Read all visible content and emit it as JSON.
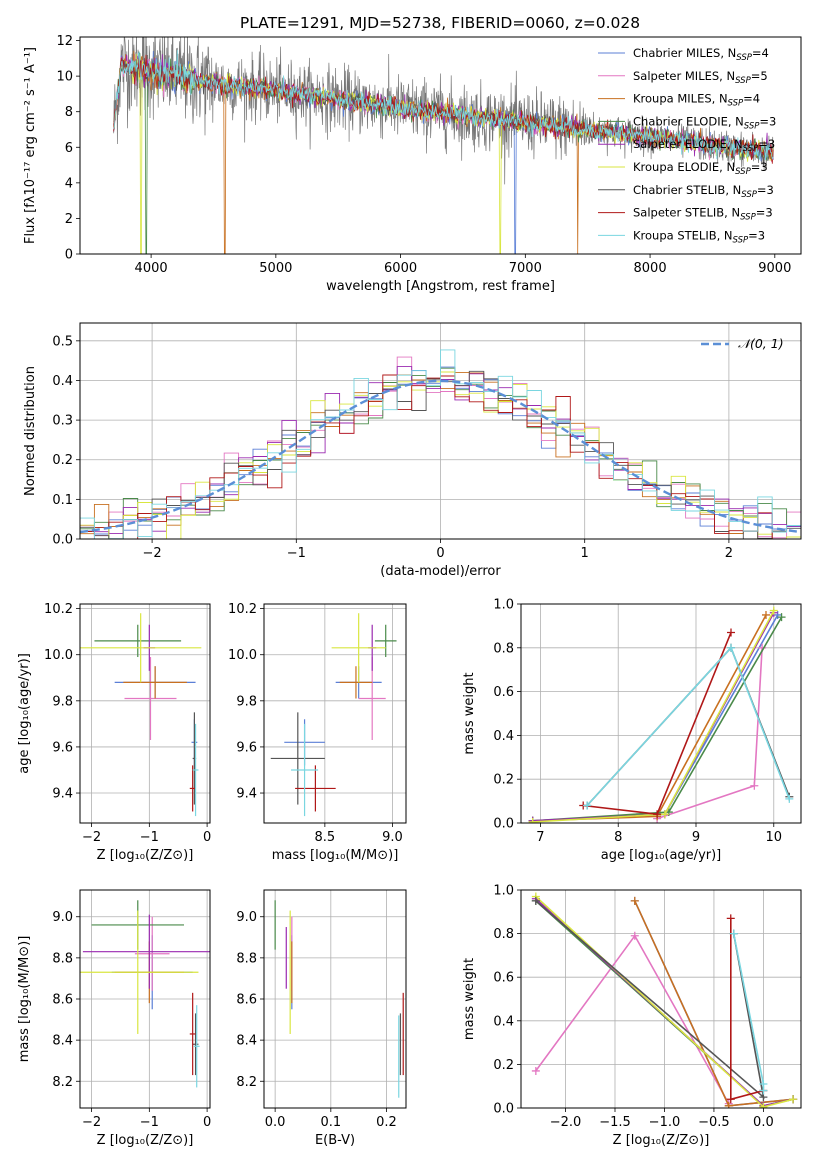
{
  "figure_title": "PLATE=1291, MJD=52738, FIBERID=0060, z=0.028",
  "colors": {
    "Chabrier MILES": "#5b7fd6",
    "Salpeter MILES": "#e377c2",
    "Kroupa MILES": "#c87020",
    "Chabrier ELODIE": "#4a8a4a",
    "Salpeter ELODIE": "#9a2ab0",
    "Kroupa ELODIE": "#d9e640",
    "Chabrier STELIB": "#555555",
    "Salpeter STELIB": "#b01818",
    "Kroupa STELIB": "#7ad6e0",
    "gauss": "#5b8fd6"
  },
  "chart_data": [
    {
      "id": "spectrum",
      "type": "line",
      "xlabel": "wavelength [Angstrom, rest frame]",
      "ylabel": "Flux [fλ10⁻¹⁷ erg cm⁻² s⁻¹ A⁻¹]",
      "xlim": [
        3430,
        9210
      ],
      "ylim": [
        0,
        12.2
      ],
      "xticks": [
        4000,
        5000,
        6000,
        7000,
        8000,
        9000
      ],
      "yticks": [
        0,
        2,
        4,
        6,
        8,
        10,
        12
      ],
      "continuum": [
        [
          3700,
          7.2
        ],
        [
          3760,
          10.6
        ],
        [
          4000,
          10.3
        ],
        [
          4500,
          9.6
        ],
        [
          5000,
          9.2
        ],
        [
          5500,
          8.7
        ],
        [
          6000,
          8.2
        ],
        [
          6500,
          7.8
        ],
        [
          7000,
          7.4
        ],
        [
          7500,
          7.0
        ],
        [
          8000,
          6.6
        ],
        [
          8500,
          6.1
        ],
        [
          8990,
          5.7
        ]
      ],
      "data_noise": 2.2,
      "legend": [
        {
          "label": "Chabrier MILES, N",
          "sub": "SSP",
          "tail": "=4"
        },
        {
          "label": "Salpeter MILES, N",
          "sub": "SSP",
          "tail": "=5"
        },
        {
          "label": "Kroupa MILES, N",
          "sub": "SSP",
          "tail": "=4"
        },
        {
          "label": "Chabrier ELODIE, N",
          "sub": "SSP",
          "tail": "=3"
        },
        {
          "label": "Salpeter ELODIE, N",
          "sub": "SSP",
          "tail": "=3"
        },
        {
          "label": "Kroupa ELODIE, N",
          "sub": "SSP",
          "tail": "=3"
        },
        {
          "label": "Chabrier STELIB, N",
          "sub": "SSP",
          "tail": "=3"
        },
        {
          "label": "Salpeter STELIB, N",
          "sub": "SSP",
          "tail": "=3"
        },
        {
          "label": "Kroupa STELIB, N",
          "sub": "SSP",
          "tail": "=3"
        }
      ],
      "series": [
        "Chabrier MILES",
        "Salpeter MILES",
        "Kroupa MILES",
        "Chabrier ELODIE",
        "Salpeter ELODIE",
        "Kroupa ELODIE",
        "Chabrier STELIB",
        "Salpeter STELIB",
        "Kroupa STELIB"
      ]
    },
    {
      "id": "residuals",
      "type": "histogram",
      "xlabel": "(data-model)/error",
      "ylabel": "Normed distribution",
      "xlim": [
        -2.5,
        2.5
      ],
      "ylim": [
        0,
        0.545
      ],
      "xticks": [
        -2,
        -1,
        0,
        1,
        2
      ],
      "yticks": [
        0.0,
        0.1,
        0.2,
        0.3,
        0.4,
        0.5
      ],
      "grid": true,
      "legend": "𝒩(0, 1)",
      "legend_position": "top-right",
      "bin_width": 0.1
    },
    {
      "id": "age_vs_Z",
      "type": "errorbar",
      "xlabel": "Z [log₁₀(Z/Z⊙)]",
      "ylabel": "age  [log₁₀(age/yr)]",
      "xlim": [
        -2.2,
        0.05
      ],
      "ylim": [
        9.27,
        10.22
      ],
      "xticks": [
        -2,
        -1,
        0
      ],
      "yticks": [
        9.4,
        9.6,
        9.8,
        10.0,
        10.2
      ],
      "grid": true,
      "points": [
        {
          "s": "Chabrier MILES",
          "x": -0.9,
          "xerr": 0.7,
          "y": 9.88,
          "yerr": 0.07
        },
        {
          "s": "Chabrier MILES",
          "x": -0.22,
          "xerr": 0.05,
          "y": 9.62,
          "yerr": 0.1
        },
        {
          "s": "Salpeter MILES",
          "x": -0.98,
          "xerr": 0.45,
          "y": 9.81,
          "yerr": 0.18
        },
        {
          "s": "Kroupa MILES",
          "x": -0.9,
          "xerr": 0.55,
          "y": 9.88,
          "yerr": 0.07
        },
        {
          "s": "Chabrier ELODIE",
          "x": -1.2,
          "xerr": 0.75,
          "y": 10.06,
          "yerr": 0.07
        },
        {
          "s": "Salpeter ELODIE",
          "x": -1.0,
          "xerr": 0.1,
          "y": 10.03,
          "yerr": 0.1
        },
        {
          "s": "Kroupa ELODIE",
          "x": -1.15,
          "xerr": 1.05,
          "y": 10.03,
          "yerr": 0.15
        },
        {
          "s": "Chabrier STELIB",
          "x": -0.22,
          "xerr": 0.03,
          "y": 9.55,
          "yerr": 0.2
        },
        {
          "s": "Salpeter STELIB",
          "x": -0.25,
          "xerr": 0.05,
          "y": 9.42,
          "yerr": 0.1
        },
        {
          "s": "Kroupa STELIB",
          "x": -0.2,
          "xerr": 0.05,
          "y": 9.5,
          "yerr": 0.2
        }
      ]
    },
    {
      "id": "age_vs_mass",
      "type": "errorbar",
      "xlabel": "mass [log₁₀(M/M⊙)]",
      "ylabel": "",
      "xlim": [
        8.05,
        9.1
      ],
      "ylim": [
        9.27,
        10.22
      ],
      "xticks": [
        8.5,
        9.0
      ],
      "yticks": [
        9.4,
        9.6,
        9.8,
        10.0,
        10.2
      ],
      "grid": true,
      "points": [
        {
          "s": "Chabrier MILES",
          "x": 8.75,
          "xerr": 0.17,
          "y": 9.88,
          "yerr": 0.07
        },
        {
          "s": "Chabrier MILES",
          "x": 8.35,
          "xerr": 0.15,
          "y": 9.62,
          "yerr": 0.1
        },
        {
          "s": "Salpeter MILES",
          "x": 8.85,
          "xerr": 0.1,
          "y": 9.81,
          "yerr": 0.18
        },
        {
          "s": "Kroupa MILES",
          "x": 8.73,
          "xerr": 0.12,
          "y": 9.88,
          "yerr": 0.07
        },
        {
          "s": "Chabrier ELODIE",
          "x": 8.95,
          "xerr": 0.08,
          "y": 10.06,
          "yerr": 0.07
        },
        {
          "s": "Salpeter ELODIE",
          "x": 8.85,
          "xerr": 0.03,
          "y": 10.03,
          "yerr": 0.1
        },
        {
          "s": "Kroupa ELODIE",
          "x": 8.75,
          "xerr": 0.2,
          "y": 10.03,
          "yerr": 0.15
        },
        {
          "s": "Chabrier STELIB",
          "x": 8.3,
          "xerr": 0.2,
          "y": 9.55,
          "yerr": 0.2
        },
        {
          "s": "Salpeter STELIB",
          "x": 8.43,
          "xerr": 0.15,
          "y": 9.42,
          "yerr": 0.1
        },
        {
          "s": "Kroupa STELIB",
          "x": 8.35,
          "xerr": 0.1,
          "y": 9.5,
          "yerr": 0.2
        }
      ]
    },
    {
      "id": "weight_vs_age",
      "type": "line",
      "xlabel": "age  [log₁₀(age/yr)]",
      "ylabel": "mass weight",
      "xlim": [
        6.75,
        10.35
      ],
      "ylim": [
        0,
        1.0
      ],
      "xticks": [
        7,
        8,
        9,
        10
      ],
      "yticks": [
        0.0,
        0.2,
        0.4,
        0.6,
        0.8,
        1.0
      ],
      "grid": true,
      "series": [
        {
          "s": "Chabrier MILES",
          "x": [
            6.9,
            8.6,
            10.05
          ],
          "y": [
            0.01,
            0.04,
            0.95
          ]
        },
        {
          "s": "Salpeter MILES",
          "x": [
            8.5,
            9.75,
            9.85
          ],
          "y": [
            0.02,
            0.17,
            0.8
          ]
        },
        {
          "s": "Kroupa MILES",
          "x": [
            6.9,
            8.5,
            9.9
          ],
          "y": [
            0.01,
            0.03,
            0.95
          ]
        },
        {
          "s": "Chabrier ELODIE",
          "x": [
            6.9,
            8.65,
            10.1
          ],
          "y": [
            0.01,
            0.05,
            0.94
          ]
        },
        {
          "s": "Salpeter ELODIE",
          "x": [
            6.9,
            8.6,
            10.0
          ],
          "y": [
            0.01,
            0.04,
            0.96
          ]
        },
        {
          "s": "Kroupa ELODIE",
          "x": [
            6.9,
            8.6,
            10.0
          ],
          "y": [
            0.005,
            0.04,
            0.97
          ]
        },
        {
          "s": "Chabrier STELIB",
          "x": [
            7.6,
            9.45,
            10.2
          ],
          "y": [
            0.08,
            0.8,
            0.12
          ]
        },
        {
          "s": "Salpeter STELIB",
          "x": [
            7.55,
            8.5,
            9.45
          ],
          "y": [
            0.08,
            0.04,
            0.87
          ]
        },
        {
          "s": "Kroupa STELIB",
          "x": [
            7.6,
            9.45,
            10.2
          ],
          "y": [
            0.08,
            0.8,
            0.11
          ]
        }
      ]
    },
    {
      "id": "mass_vs_Z",
      "type": "errorbar",
      "xlabel": "Z [log₁₀(Z/Z⊙)]",
      "ylabel": "mass [log₁₀(M/M⊙)]",
      "xlim": [
        -2.2,
        0.05
      ],
      "ylim": [
        8.07,
        9.13
      ],
      "xticks": [
        -2,
        -1,
        0
      ],
      "yticks": [
        8.2,
        8.4,
        8.6,
        8.8,
        9.0
      ],
      "grid": true,
      "points": [
        {
          "s": "Chabrier MILES",
          "x": -0.95,
          "xerr": 0.7,
          "y": 8.73,
          "yerr": 0.18
        },
        {
          "s": "Salpeter MILES",
          "x": -0.95,
          "xerr": 0.3,
          "y": 8.82,
          "yerr": 0.18
        },
        {
          "s": "Kroupa MILES",
          "x": -1.0,
          "xerr": 0.6,
          "y": 8.73,
          "yerr": 0.15
        },
        {
          "s": "Chabrier ELODIE",
          "x": -1.2,
          "xerr": 0.8,
          "y": 8.96,
          "yerr": 0.12
        },
        {
          "s": "Salpeter ELODIE",
          "x": -1.0,
          "xerr": 1.15,
          "y": 8.83,
          "yerr": 0.18
        },
        {
          "s": "Kroupa ELODIE",
          "x": -1.2,
          "xerr": 1.05,
          "y": 8.73,
          "yerr": 0.3
        },
        {
          "s": "Chabrier STELIB",
          "x": -0.2,
          "xerr": 0.05,
          "y": 8.38,
          "yerr": 0.15
        },
        {
          "s": "Salpeter STELIB",
          "x": -0.25,
          "xerr": 0.05,
          "y": 8.43,
          "yerr": 0.2
        },
        {
          "s": "Kroupa STELIB",
          "x": -0.18,
          "xerr": 0.05,
          "y": 8.37,
          "yerr": 0.2
        }
      ]
    },
    {
      "id": "mass_vs_ebv",
      "type": "errorbar",
      "xlabel": "E(B-V)",
      "ylabel": "",
      "xlim": [
        -0.02,
        0.235
      ],
      "ylim": [
        8.07,
        9.13
      ],
      "xticks": [
        0.0,
        0.1,
        0.2
      ],
      "yticks": [
        8.2,
        8.4,
        8.6,
        8.8,
        9.0
      ],
      "grid": true,
      "points": [
        {
          "s": "Chabrier MILES",
          "x": 0.03,
          "xerr": 0,
          "y": 8.73,
          "yerr": 0.18
        },
        {
          "s": "Salpeter MILES",
          "x": 0.03,
          "xerr": 0,
          "y": 8.82,
          "yerr": 0.18
        },
        {
          "s": "Kroupa MILES",
          "x": 0.03,
          "xerr": 0,
          "y": 8.73,
          "yerr": 0.15
        },
        {
          "s": "Chabrier ELODIE",
          "x": 0.0,
          "xerr": 0,
          "y": 8.96,
          "yerr": 0.12
        },
        {
          "s": "Salpeter ELODIE",
          "x": 0.02,
          "xerr": 0,
          "y": 8.8,
          "yerr": 0.15
        },
        {
          "s": "Kroupa ELODIE",
          "x": 0.027,
          "xerr": 0,
          "y": 8.73,
          "yerr": 0.3
        },
        {
          "s": "Chabrier STELIB",
          "x": 0.225,
          "xerr": 0,
          "y": 8.38,
          "yerr": 0.15
        },
        {
          "s": "Salpeter STELIB",
          "x": 0.23,
          "xerr": 0,
          "y": 8.43,
          "yerr": 0.2
        },
        {
          "s": "Kroupa STELIB",
          "x": 0.222,
          "xerr": 0,
          "y": 8.32,
          "yerr": 0.2
        }
      ]
    },
    {
      "id": "weight_vs_Z",
      "type": "line",
      "xlabel": "Z [log₁₀(Z/Z⊙)]",
      "ylabel": "mass weight",
      "xlim": [
        -2.45,
        0.38
      ],
      "ylim": [
        0,
        1.0
      ],
      "xticks": [
        -2.0,
        -1.5,
        -1.0,
        -0.5,
        0.0
      ],
      "yticks": [
        0.0,
        0.2,
        0.4,
        0.6,
        0.8,
        1.0
      ],
      "grid": true,
      "series": [
        {
          "s": "Chabrier MILES",
          "x": [
            -1.3,
            -0.35,
            0.3
          ],
          "y": [
            0.95,
            0.01,
            0.04
          ]
        },
        {
          "s": "Salpeter MILES",
          "x": [
            -2.3,
            -1.3,
            -0.35
          ],
          "y": [
            0.17,
            0.79,
            0.02
          ]
        },
        {
          "s": "Kroupa MILES",
          "x": [
            -1.3,
            -0.35,
            0.3
          ],
          "y": [
            0.95,
            0.01,
            0.04
          ]
        },
        {
          "s": "Chabrier ELODIE",
          "x": [
            -2.3,
            0.0,
            0.3
          ],
          "y": [
            0.95,
            0.01,
            0.04
          ]
        },
        {
          "s": "Salpeter ELODIE",
          "x": [
            -2.3,
            0.0,
            0.3
          ],
          "y": [
            0.96,
            0.01,
            0.04
          ]
        },
        {
          "s": "Kroupa ELODIE",
          "x": [
            -2.3,
            0.0,
            0.3
          ],
          "y": [
            0.97,
            0.005,
            0.04
          ]
        },
        {
          "s": "Chabrier STELIB",
          "x": [
            -2.3,
            0.0,
            -0.3
          ],
          "y": [
            0.95,
            0.05,
            0.8
          ]
        },
        {
          "s": "Salpeter STELIB",
          "x": [
            -0.33,
            -0.33,
            0.0
          ],
          "y": [
            0.87,
            0.04,
            0.08
          ]
        },
        {
          "s": "Kroupa STELIB",
          "x": [
            -0.3,
            0.0,
            0.0
          ],
          "y": [
            0.8,
            0.11,
            0.08
          ]
        }
      ]
    }
  ]
}
